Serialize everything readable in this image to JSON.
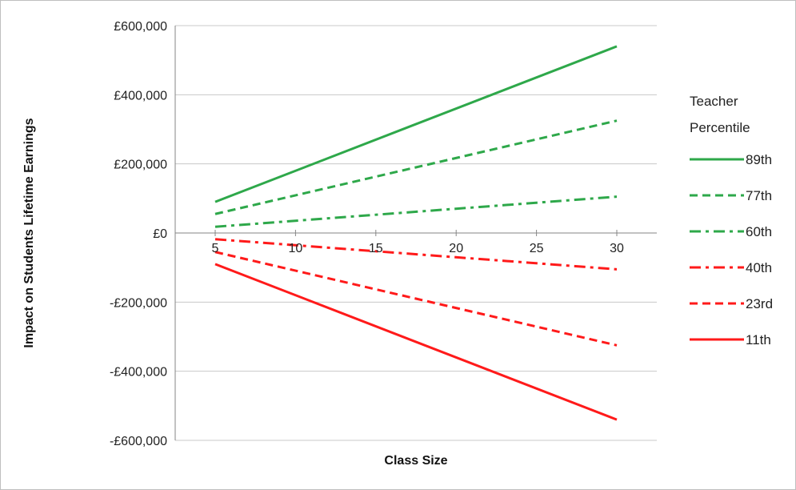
{
  "chart_data": {
    "type": "line",
    "title": "",
    "xlabel": "Class Size",
    "ylabel": "Impact on Students Lifetime Earnings",
    "x": [
      5,
      30
    ],
    "xlim": [
      5,
      30
    ],
    "ylim": [
      -600000,
      600000
    ],
    "x_ticks": [
      "5",
      "10",
      "15",
      "20",
      "25",
      "30"
    ],
    "y_ticks": [
      "£600,000",
      "£400,000",
      "£200,000",
      "£0",
      "-£200,000",
      "-£400,000",
      "-£600,000"
    ],
    "grid": "horizontal",
    "legend_title": "Teacher Percentile",
    "legend_title_lines": [
      "Teacher",
      "Percentile"
    ],
    "legend_position": "right",
    "series": [
      {
        "name": "89th",
        "values": [
          90000,
          540000
        ],
        "color": "#2ea84a",
        "dash": "solid"
      },
      {
        "name": "77th",
        "values": [
          55000,
          325000
        ],
        "color": "#2ea84a",
        "dash": "dashed"
      },
      {
        "name": "60th",
        "values": [
          18000,
          105000
        ],
        "color": "#2ea84a",
        "dash": "dashdot"
      },
      {
        "name": "40th",
        "values": [
          -18000,
          -105000
        ],
        "color": "#ff1a1a",
        "dash": "dashdot"
      },
      {
        "name": "23rd",
        "values": [
          -55000,
          -325000
        ],
        "color": "#ff1a1a",
        "dash": "dashed"
      },
      {
        "name": "11th",
        "values": [
          -90000,
          -540000
        ],
        "color": "#ff1a1a",
        "dash": "solid"
      }
    ]
  }
}
